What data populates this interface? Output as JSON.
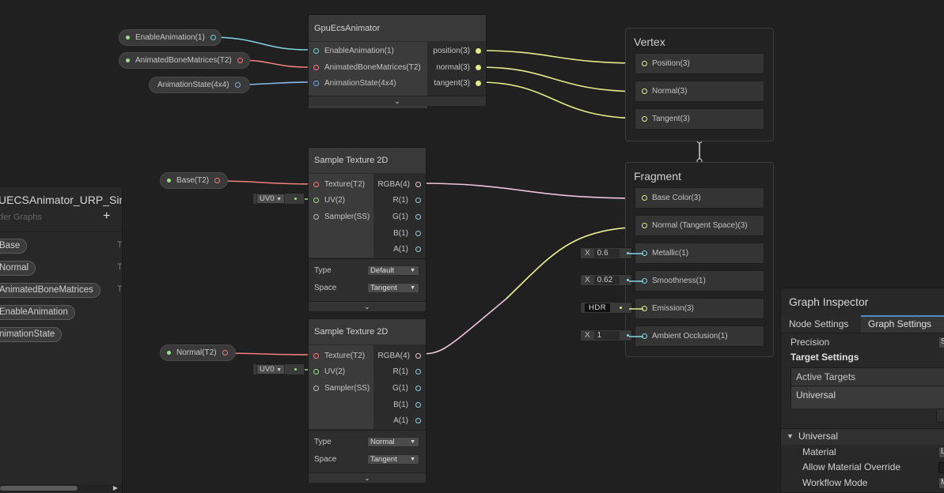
{
  "property_pills": [
    {
      "label": "EnableAnimation(1)",
      "port_color": "#7ad0e0"
    },
    {
      "label": "AnimatedBoneMatrices(T2)",
      "port_color": "#f07a78"
    },
    {
      "label": "AnimationState(4x4)",
      "port_color": "#70a8e0"
    },
    {
      "label": "Base(T2)",
      "port_color": "#f07a78"
    },
    {
      "label": "Normal(T2)",
      "port_color": "#f07a78"
    }
  ],
  "gpu_node": {
    "title": "GpuEcsAnimator",
    "inputs": [
      "EnableAnimation(1)",
      "AnimatedBoneMatrices(T2)",
      "AnimationState(4x4)"
    ],
    "outputs": [
      "position(3)",
      "normal(3)",
      "tangent(3)"
    ],
    "collapse_glyph": "⌄"
  },
  "sample_nodes": [
    {
      "title": "Sample Texture 2D",
      "inputs": [
        "Texture(T2)",
        "UV(2)",
        "Sampler(SS)"
      ],
      "outputs": [
        "RGBA(4)",
        "R(1)",
        "G(1)",
        "B(1)",
        "A(1)"
      ],
      "type_label": "Type",
      "type_value": "Default",
      "space_label": "Space",
      "space_value": "Tangent",
      "uv_value": "UV0",
      "collapse_glyph": "⌄"
    },
    {
      "title": "Sample Texture 2D",
      "inputs": [
        "Texture(T2)",
        "UV(2)",
        "Sampler(SS)"
      ],
      "outputs": [
        "RGBA(4)",
        "R(1)",
        "G(1)",
        "B(1)",
        "A(1)"
      ],
      "type_label": "Type",
      "type_value": "Normal",
      "space_label": "Space",
      "space_value": "Tangent",
      "uv_value": "UV0",
      "collapse_glyph": "⌄"
    }
  ],
  "vertex_stack": {
    "title": "Vertex",
    "blocks": [
      "Position(3)",
      "Normal(3)",
      "Tangent(3)"
    ]
  },
  "fragment_stack": {
    "title": "Fragment",
    "blocks": [
      "Base Color(3)",
      "Normal (Tangent Space)(3)",
      "Metallic(1)",
      "Smoothness(1)",
      "Emission(3)",
      "Ambient Occlusion(1)"
    ]
  },
  "inline_inputs": {
    "metallic": {
      "axis": "X",
      "value": "0.6"
    },
    "smoothness": {
      "axis": "X",
      "value": "0.62"
    },
    "emission": {
      "value": "HDR"
    },
    "ambient_occlusion": {
      "axis": "X",
      "value": "1"
    }
  },
  "blackboard": {
    "title": "UECSAnimator_URP_Sim",
    "subtitle": "der Graphs",
    "add_glyph": "+",
    "properties": [
      {
        "name": "Base",
        "type_hint": "T"
      },
      {
        "name": "Normal",
        "type_hint": "T"
      },
      {
        "name": "AnimatedBoneMatrices",
        "type_hint": "T"
      },
      {
        "name": "EnableAnimation",
        "type_hint": ""
      },
      {
        "name": "nimationState",
        "type_hint": ""
      }
    ],
    "scroll_arrow": "▶"
  },
  "inspector": {
    "title": "Graph Inspector",
    "tabs": [
      "Node Settings",
      "Graph Settings"
    ],
    "active_tab": "Graph Settings",
    "precision_label": "Precision",
    "precision_value": "S",
    "target_settings_label": "Target Settings",
    "active_targets_label": "Active Targets",
    "active_target": "Universal",
    "section_label": "Universal",
    "section_caret": "▼",
    "rows": [
      {
        "label": "Material",
        "value": "L"
      },
      {
        "label": "Allow Material Override",
        "value": ""
      },
      {
        "label": "Workflow Mode",
        "value": "M"
      }
    ]
  },
  "colors": {
    "vector3_wire": "#e4ec88",
    "texture_wire": "#ef7f7d",
    "float_wire": "#84d4e4",
    "matrix_wire": "#8bb8e8",
    "vector4_wire": "#efc3dc",
    "vector2_wire": "#9be08b",
    "inspector_accent": "#4d8ec8"
  }
}
